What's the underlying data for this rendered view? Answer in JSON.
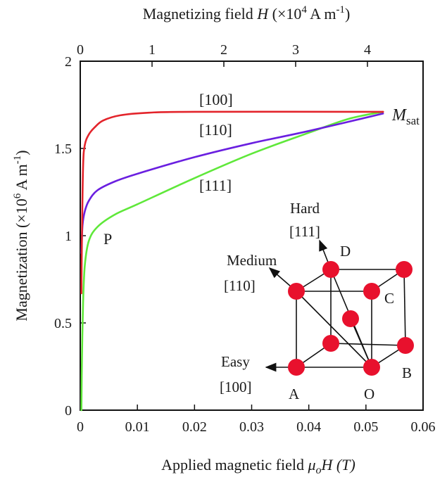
{
  "chart_data": {
    "type": "line",
    "xlabel_bottom": {
      "text": "Applied  magnetic  field  ",
      "symbol": "μ",
      "subscript": "o",
      "tail": "H  (T)"
    },
    "xlabel_top": {
      "text": "Magnetizing  field  ",
      "symbol": "H",
      "tail_open": " (×10",
      "exp": "4",
      "tail_mid": " A  m",
      "exp2": "-1",
      "tail_close": ")"
    },
    "ylabel": {
      "text": "Magnetization  (×10",
      "exp": "6",
      "mid": " A  m",
      "exp2": "-1",
      "close": ")"
    },
    "xlim": [
      0,
      0.06
    ],
    "ylim": [
      0,
      2
    ],
    "top_xlim": [
      0,
      4.7747
    ],
    "x_ticks": [
      "0",
      "0.01",
      "0.02",
      "0.03",
      "0.04",
      "0.05",
      "0.06"
    ],
    "x_tick_values": [
      0,
      0.01,
      0.02,
      0.03,
      0.04,
      0.05,
      0.06
    ],
    "top_ticks": [
      "0",
      "1",
      "2",
      "3",
      "4"
    ],
    "top_tick_values": [
      0,
      1,
      2,
      3,
      4
    ],
    "y_ticks": [
      "0",
      "0.5",
      "1",
      "1.5",
      "2"
    ],
    "y_tick_values": [
      0,
      0.5,
      1,
      1.5,
      2
    ],
    "series": [
      {
        "name": "[100]",
        "color": "#e3242b",
        "points": [
          [
            0.0002,
            0.67
          ],
          [
            0.0003,
            1.0
          ],
          [
            0.0005,
            1.4
          ],
          [
            0.0008,
            1.52
          ],
          [
            0.0015,
            1.58
          ],
          [
            0.0025,
            1.62
          ],
          [
            0.004,
            1.66
          ],
          [
            0.007,
            1.69
          ],
          [
            0.012,
            1.705
          ],
          [
            0.02,
            1.71
          ],
          [
            0.053,
            1.71
          ]
        ]
      },
      {
        "name": "[110]",
        "color": "#6a1fe0",
        "points": [
          [
            0.0002,
            0.9
          ],
          [
            0.0004,
            1.06
          ],
          [
            0.0008,
            1.14
          ],
          [
            0.0015,
            1.2
          ],
          [
            0.003,
            1.26
          ],
          [
            0.006,
            1.31
          ],
          [
            0.01,
            1.355
          ],
          [
            0.02,
            1.45
          ],
          [
            0.03,
            1.53
          ],
          [
            0.04,
            1.6
          ],
          [
            0.053,
            1.7
          ]
        ]
      },
      {
        "name": "[111]",
        "color": "#5fe83a",
        "points": [
          [
            0.0002,
            0.0
          ],
          [
            0.0003,
            0.3
          ],
          [
            0.0005,
            0.62
          ],
          [
            0.0008,
            0.83
          ],
          [
            0.0015,
            0.97
          ],
          [
            0.003,
            1.05
          ],
          [
            0.006,
            1.12
          ],
          [
            0.01,
            1.18
          ],
          [
            0.02,
            1.33
          ],
          [
            0.03,
            1.47
          ],
          [
            0.04,
            1.59
          ],
          [
            0.047,
            1.67
          ],
          [
            0.053,
            1.71
          ]
        ]
      }
    ],
    "annotations": {
      "msat": {
        "symbol": "M",
        "sub": "sat"
      },
      "p": "P"
    },
    "inset": {
      "hard": "Hard",
      "hard_dir": "[111]",
      "medium": "Medium",
      "medium_dir": "[110]",
      "easy": "Easy",
      "easy_dir": "[100]",
      "corners": [
        "A",
        "B",
        "C",
        "D",
        "O"
      ],
      "atom_color": "#e8112d"
    }
  }
}
